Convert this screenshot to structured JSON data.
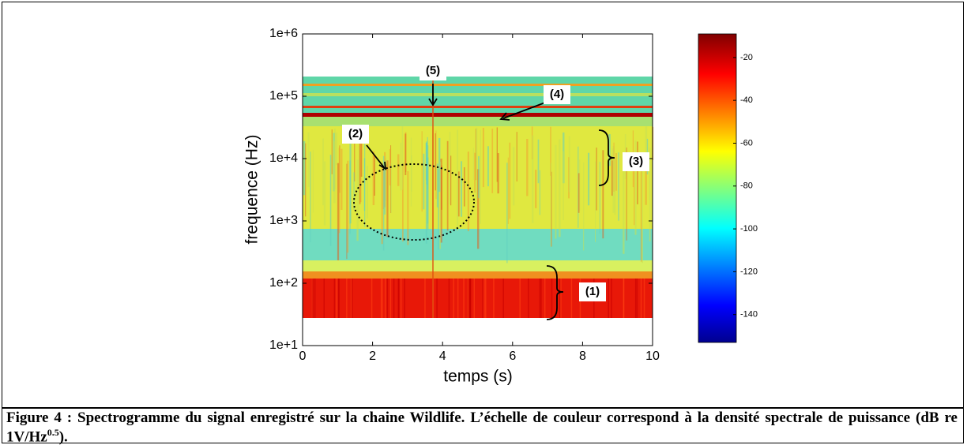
{
  "chart_data": {
    "type": "spectrogram",
    "xlabel": "temps (s)",
    "ylabel": "frequence (Hz)",
    "xlim": [
      0,
      10
    ],
    "xticks": [
      0,
      2,
      4,
      6,
      8,
      10
    ],
    "ylim": [
      10,
      1000000
    ],
    "y_log": true,
    "yticks": [
      {
        "value": 10,
        "label": "1e+1"
      },
      {
        "value": 100,
        "label": "1e+2"
      },
      {
        "value": 1000,
        "label": "1e+3"
      },
      {
        "value": 10000,
        "label": "1e+4"
      },
      {
        "value": 100000,
        "label": "1e+5"
      },
      {
        "value": 1000000,
        "label": "1e+6"
      }
    ],
    "colorbar": {
      "clim": [
        -153,
        -9
      ],
      "ticks": [
        -20,
        -40,
        -60,
        -80,
        -100,
        -120,
        -140
      ]
    },
    "annotations": [
      "(1)",
      "(2)",
      "(3)",
      "(4)",
      "(5)"
    ]
  },
  "caption": {
    "text": "Figure 4 : Spectrogramme du signal enregistré sur la chaine Wildlife. L’échelle de couleur correspond à la densité spectrale de puissance (dB re 1V/Hz",
    "sup": "0.5",
    "end": ")."
  }
}
